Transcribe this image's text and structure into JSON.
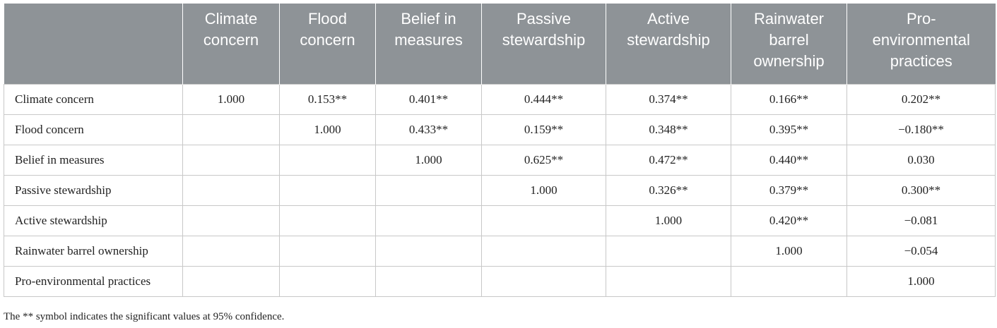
{
  "table": {
    "columns": [
      "Climate concern",
      "Flood concern",
      "Belief in measures",
      "Passive stewardship",
      "Active stewardship",
      "Rainwater barrel ownership",
      "Pro-environmental practices"
    ],
    "rows": [
      {
        "label": "Climate concern",
        "cells": [
          "1.000",
          "0.153**",
          "0.401**",
          "0.444**",
          "0.374**",
          "0.166**",
          "0.202**"
        ]
      },
      {
        "label": "Flood concern",
        "cells": [
          "1.000",
          "0.433**",
          "0.159**",
          "0.348**",
          "0.395**",
          "−0.180**"
        ]
      },
      {
        "label": "Belief in measures",
        "cells": [
          "1.000",
          "0.625**",
          "0.472**",
          "0.440**",
          "0.030"
        ]
      },
      {
        "label": "Passive stewardship",
        "cells": [
          "1.000",
          "0.326**",
          "0.379**",
          "0.300**"
        ]
      },
      {
        "label": "Active stewardship",
        "cells": [
          "1.000",
          "0.420**",
          "−0.081"
        ]
      },
      {
        "label": "Rainwater barrel ownership",
        "cells": [
          "1.000",
          "−0.054"
        ]
      },
      {
        "label": "Pro-environmental practices",
        "cells": [
          "1.000"
        ]
      }
    ],
    "footnote": "The ** symbol indicates the significant values at 95% confidence."
  }
}
